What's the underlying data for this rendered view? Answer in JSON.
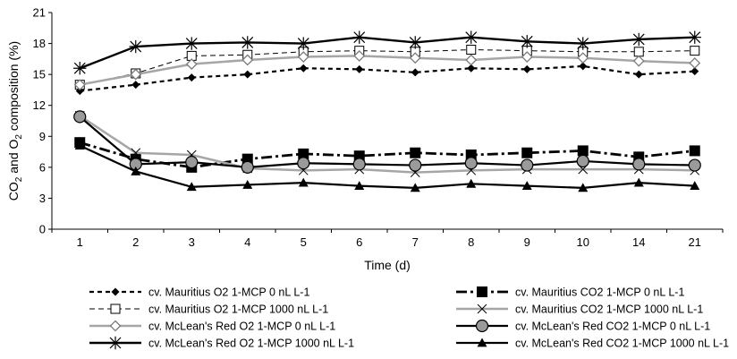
{
  "chart_data": {
    "type": "line",
    "xlabel": "Time (d)",
    "ylabel": {
      "p1": "CO",
      "s1": "2",
      "p2": " and O",
      "s2": "2",
      "p3": " composition (%)"
    },
    "ylim": [
      0,
      21
    ],
    "yticks": [
      "0",
      "3",
      "6",
      "9",
      "12",
      "15",
      "18",
      "21"
    ],
    "categories": [
      "1",
      "2",
      "3",
      "4",
      "5",
      "6",
      "7",
      "8",
      "9",
      "10",
      "14",
      "21"
    ],
    "grid": false,
    "legend_position": "bottom",
    "series": [
      {
        "name": "cv. Mauritius  O2 1-MCP 0 nL L-1",
        "color": "#000000",
        "dash": "5,4",
        "width": 2.2,
        "marker": "diamond-filled",
        "values": [
          13.4,
          14.0,
          14.7,
          15.0,
          15.6,
          15.5,
          15.2,
          15.6,
          15.5,
          15.8,
          15.0,
          15.3
        ]
      },
      {
        "name": "cv. Mauritius  CO2 1-MCP 0 nL L-1",
        "color": "#000000",
        "dash": "12,4,3,4",
        "width": 2.8,
        "marker": "square-filled",
        "values": [
          8.4,
          6.8,
          6.0,
          6.8,
          7.3,
          7.1,
          7.4,
          7.2,
          7.4,
          7.6,
          7.0,
          7.6
        ]
      },
      {
        "name": "cv. Mauritius  O2 1-MCP 1000 nL L-1",
        "color": "#000000",
        "dash": "6,4",
        "width": 1.0,
        "marker": "square-open",
        "values": [
          14.0,
          15.1,
          16.8,
          16.9,
          17.2,
          17.3,
          17.2,
          17.4,
          17.3,
          17.2,
          17.2,
          17.3
        ]
      },
      {
        "name": "cv. Mauritius  CO2 1-MCP 1000 nL L-1",
        "color": "#a6a6a6",
        "dash": "",
        "width": 2.5,
        "marker": "x",
        "values": [
          11.0,
          7.4,
          7.2,
          5.9,
          5.7,
          5.8,
          5.5,
          5.7,
          5.8,
          5.8,
          5.8,
          5.7
        ]
      },
      {
        "name": "cv. McLean's Red O2 1-MCP 0 nL L-1",
        "color": "#a6a6a6",
        "dash": "",
        "width": 2.5,
        "marker": "diamond-open",
        "values": [
          14.0,
          15.0,
          16.0,
          16.4,
          16.7,
          16.8,
          16.6,
          16.4,
          16.7,
          16.6,
          16.3,
          16.1
        ]
      },
      {
        "name": "cv. McLean's Red CO2 1-MCP 0 nL L-1",
        "color": "#000000",
        "dash": "",
        "width": 2.2,
        "marker": "circle-gray",
        "values": [
          10.9,
          6.3,
          6.5,
          6.0,
          6.4,
          6.3,
          6.2,
          6.4,
          6.2,
          6.6,
          6.3,
          6.2
        ]
      },
      {
        "name": "cv. McLean's Red O2 1-MCP 1000 nL L-1",
        "color": "#000000",
        "dash": "",
        "width": 2.4,
        "marker": "asterisk",
        "values": [
          15.6,
          17.7,
          18.0,
          18.1,
          18.0,
          18.6,
          18.1,
          18.6,
          18.2,
          18.0,
          18.4,
          18.6
        ]
      },
      {
        "name": "cv. McLean's Red CO2 1-MCP 1000 nL L-1",
        "color": "#000000",
        "dash": "",
        "width": 2.2,
        "marker": "triangle-filled",
        "values": [
          8.1,
          5.6,
          4.1,
          4.3,
          4.5,
          4.2,
          4.0,
          4.4,
          4.2,
          4.0,
          4.5,
          4.2
        ]
      }
    ]
  }
}
